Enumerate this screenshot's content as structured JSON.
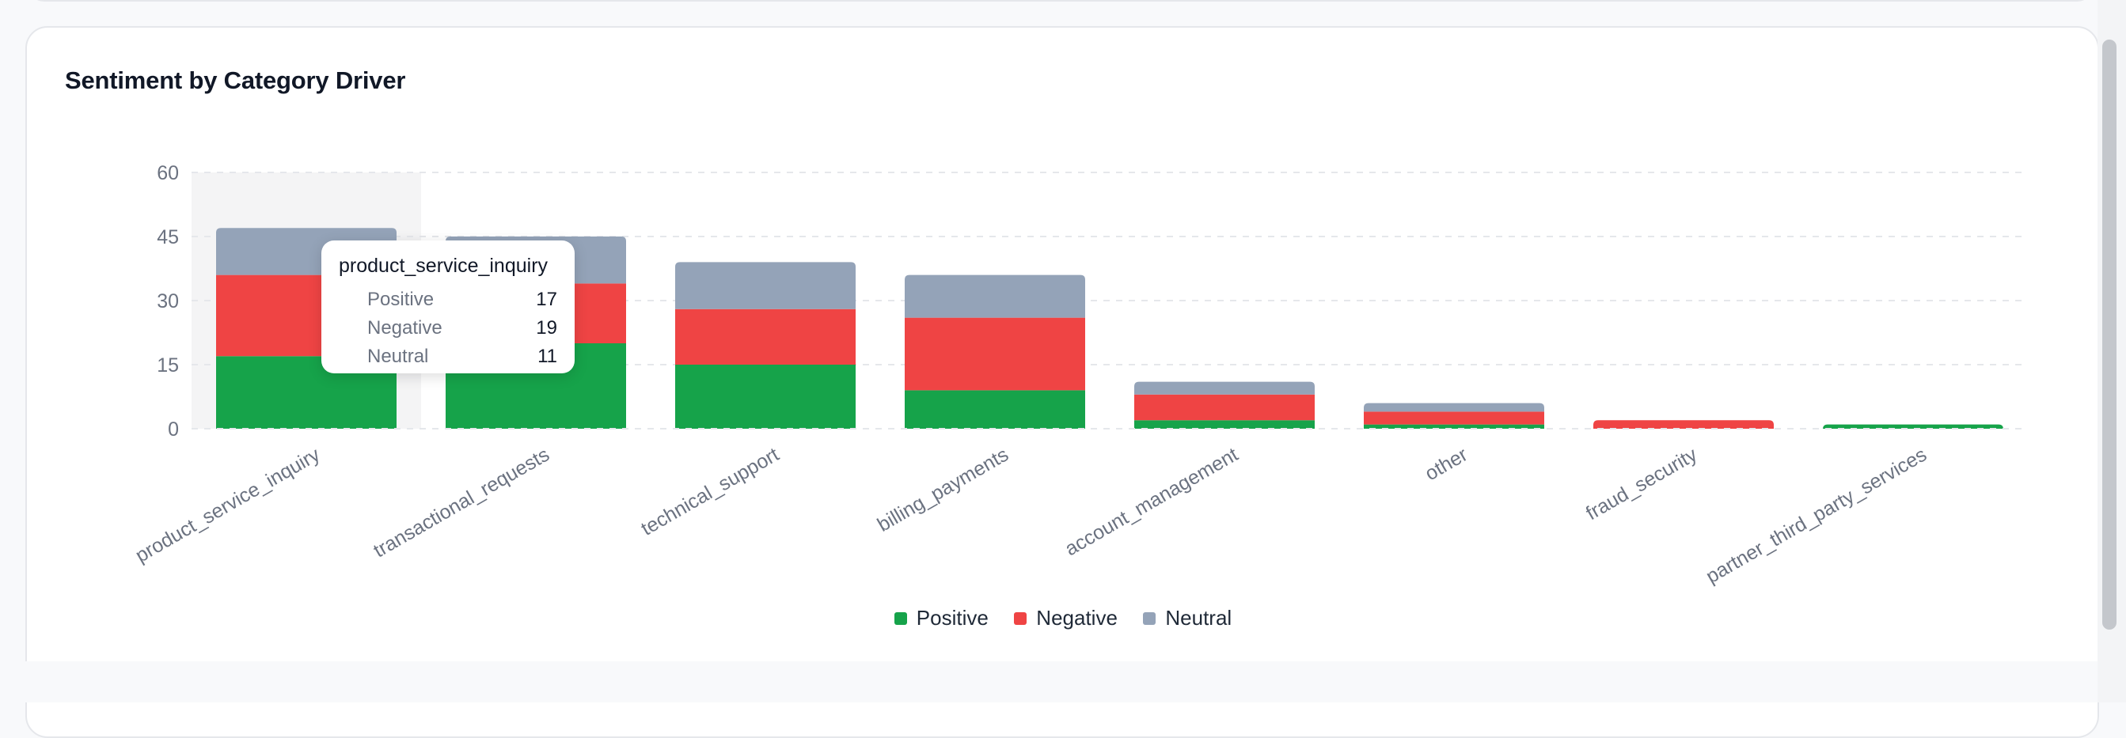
{
  "card": {
    "title": "Sentiment by Category Driver"
  },
  "colors": {
    "positive": "#16a34a",
    "negative": "#ef4444",
    "neutral": "#94a3b8",
    "highlight": "#f4f4f5",
    "grid": "#e5e7eb"
  },
  "chart_data": {
    "type": "bar",
    "stacked": true,
    "title": "Sentiment by Category Driver",
    "categories": [
      "product_service_inquiry",
      "transactional_requests",
      "technical_support",
      "billing_payments",
      "account_management",
      "other",
      "fraud_security",
      "partner_third_party_services"
    ],
    "series": [
      {
        "name": "Positive",
        "values": [
          17,
          20,
          15,
          9,
          2,
          1,
          0,
          1
        ]
      },
      {
        "name": "Negative",
        "values": [
          19,
          14,
          13,
          17,
          6,
          3,
          2,
          0
        ]
      },
      {
        "name": "Neutral",
        "values": [
          11,
          11,
          11,
          10,
          3,
          2,
          0,
          0
        ]
      }
    ],
    "ylim": [
      0,
      60
    ],
    "yticks": [
      "0",
      "15",
      "30",
      "45",
      "60"
    ],
    "grid": true,
    "legend": "bottom-center",
    "highlighted_category": "product_service_inquiry"
  },
  "tooltip": {
    "title": "product_service_inquiry",
    "rows": [
      {
        "label": "Positive",
        "value": "17"
      },
      {
        "label": "Negative",
        "value": "19"
      },
      {
        "label": "Neutral",
        "value": "11"
      }
    ]
  },
  "legend": {
    "items": [
      {
        "label": "Positive",
        "color": "#16a34a"
      },
      {
        "label": "Negative",
        "color": "#ef4444"
      },
      {
        "label": "Neutral",
        "color": "#94a3b8"
      }
    ]
  }
}
